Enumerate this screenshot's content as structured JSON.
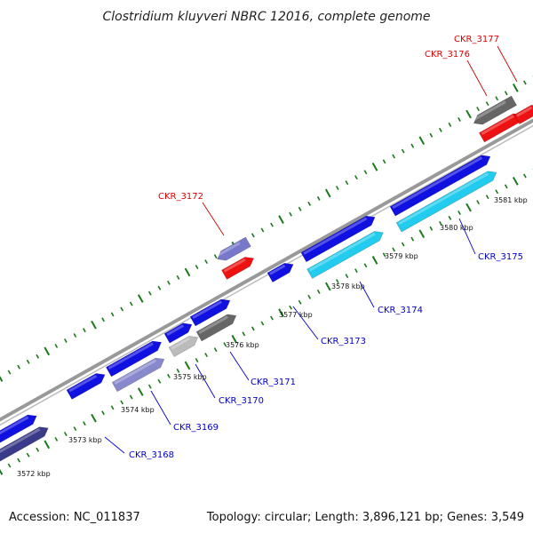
{
  "title": "Clostridium kluyveri NBRC 12016, complete genome",
  "footer": {
    "accession": "Accession: NC_011837",
    "summary": "Topology: circular; Length: 3,896,121 bp; Genes: 3,549"
  },
  "colors": {
    "backbone": "#999999",
    "tick": "#1a7a1a",
    "label_forward": "#0000cc",
    "label_reverse": "#dd0000",
    "leader_forward": "#0000cc",
    "leader_reverse": "#cc0000"
  },
  "tick_labels": [
    "3572 kbp",
    "3573 kbp",
    "3574 kbp",
    "3575 kbp",
    "3576 kbp",
    "3577 kbp",
    "3578 kbp",
    "3579 kbp",
    "3580 kbp",
    "3581 kbp"
  ],
  "gene_labels": [
    {
      "name": "CKR_3168",
      "strand": "forward"
    },
    {
      "name": "CKR_3169",
      "strand": "forward"
    },
    {
      "name": "CKR_3170",
      "strand": "forward"
    },
    {
      "name": "CKR_3171",
      "strand": "forward"
    },
    {
      "name": "CKR_3172",
      "strand": "reverse"
    },
    {
      "name": "CKR_3173",
      "strand": "forward"
    },
    {
      "name": "CKR_3174",
      "strand": "forward"
    },
    {
      "name": "CKR_3175",
      "strand": "forward"
    },
    {
      "name": "CKR_3176",
      "strand": "reverse"
    },
    {
      "name": "CKR_3177",
      "strand": "reverse"
    }
  ],
  "features": [
    {
      "id": "f1",
      "track": "forward",
      "color": "#1010e0"
    },
    {
      "id": "f2",
      "track": "forward-inner",
      "color": "#3a3a8a"
    },
    {
      "id": "f3",
      "track": "forward",
      "color": "#1010e0"
    },
    {
      "id": "f4",
      "track": "forward",
      "color": "#1010e0"
    },
    {
      "id": "f5",
      "track": "forward-inner",
      "color": "#8888cc"
    },
    {
      "id": "f6",
      "track": "forward",
      "color": "#1010e0"
    },
    {
      "id": "f7",
      "track": "forward-inner",
      "color": "#bbbbbb"
    },
    {
      "id": "f8",
      "track": "forward",
      "color": "#1010e0"
    },
    {
      "id": "f9",
      "track": "forward-inner",
      "color": "#666666"
    },
    {
      "id": "f10",
      "track": "reverse",
      "color": "#7777cc"
    },
    {
      "id": "f11",
      "track": "reverse-inner",
      "color": "#ee1111"
    },
    {
      "id": "f12",
      "track": "forward",
      "color": "#1010e0"
    },
    {
      "id": "f13",
      "track": "forward",
      "color": "#1010e0"
    },
    {
      "id": "f14",
      "track": "forward-inner",
      "color": "#22ccee"
    },
    {
      "id": "f15",
      "track": "forward",
      "color": "#1010e0"
    },
    {
      "id": "f16",
      "track": "forward-inner",
      "color": "#22ccee"
    },
    {
      "id": "f17",
      "track": "reverse",
      "color": "#666666"
    },
    {
      "id": "f18",
      "track": "reverse-inner",
      "color": "#ee1111"
    },
    {
      "id": "f19",
      "track": "reverse",
      "color": "#ee1111"
    }
  ]
}
